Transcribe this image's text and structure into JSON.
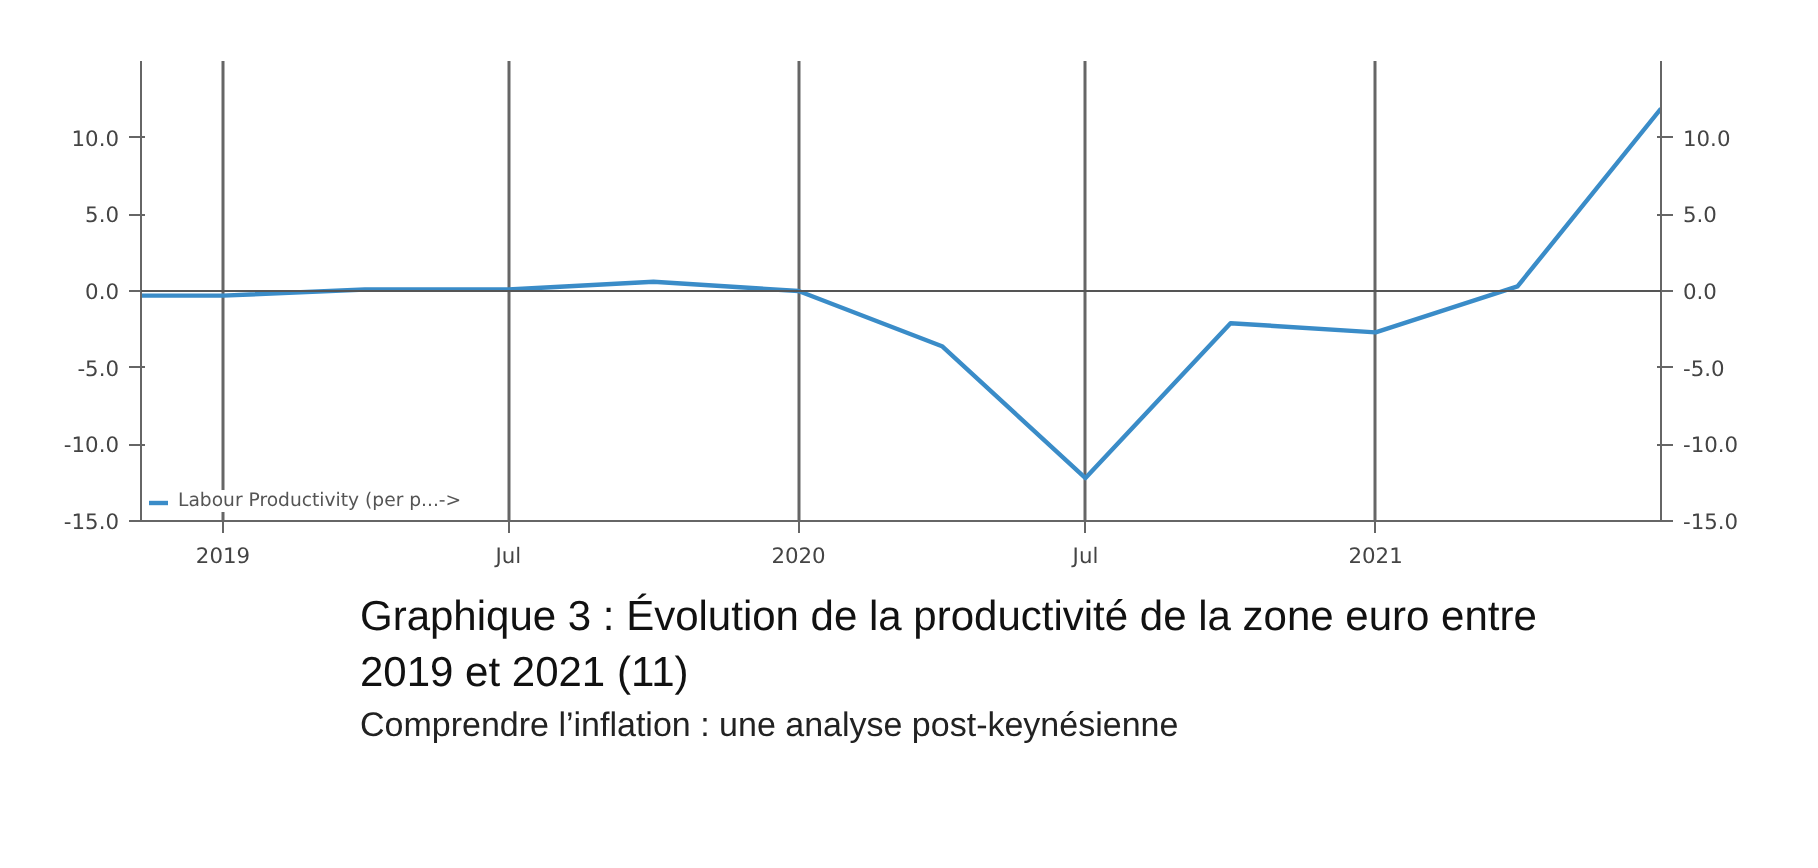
{
  "chart_data": {
    "type": "line",
    "title": "Graphique 3 : Évolution de la productivité de la zone euro entre 2019 et 2021 (11)",
    "subtitle": "Comprendre l’inflation : une analyse post-keynésienne",
    "x": [
      "2018-11-10",
      "2019-01-01",
      "2019-04-01",
      "2019-07-01",
      "2019-10-01",
      "2020-01-01",
      "2020-04-01",
      "2020-07-01",
      "2020-10-01",
      "2021-01-01",
      "2021-04-01",
      "2021-07-01"
    ],
    "series": [
      {
        "name": "Labour Productivity (per p...->",
        "color": "#3a8cc8",
        "values": [
          -0.3,
          -0.3,
          0.1,
          0.1,
          0.6,
          0.0,
          -3.6,
          -12.2,
          -2.1,
          -2.7,
          0.3,
          11.9
        ]
      }
    ],
    "xlim": [
      "2018-11-10",
      "2021-07-01"
    ],
    "xticks": [
      {
        "value": "2019-01-01",
        "label": "2019"
      },
      {
        "value": "2019-07-01",
        "label": "Jul"
      },
      {
        "value": "2020-01-01",
        "label": "2020"
      },
      {
        "value": "2020-07-01",
        "label": "Jul"
      },
      {
        "value": "2021-01-01",
        "label": "2021"
      }
    ],
    "ylim": [
      -15,
      15
    ],
    "yticks": [
      {
        "value": -15,
        "label": "-15.0"
      },
      {
        "value": -10,
        "label": "-10.0"
      },
      {
        "value": -5,
        "label": "-5.0"
      },
      {
        "value": 0,
        "label": "0.0"
      },
      {
        "value": 5,
        "label": "5.0"
      },
      {
        "value": 10,
        "label": "10.0"
      }
    ],
    "y2lim": [
      -15,
      15
    ],
    "y2ticks": [
      {
        "value": -15,
        "label": "-15.0"
      },
      {
        "value": -10,
        "label": "-10.0"
      },
      {
        "value": -5,
        "label": "-5.0"
      },
      {
        "value": 0,
        "label": "0.0"
      },
      {
        "value": 5,
        "label": "5.0"
      },
      {
        "value": 10,
        "label": "10.0"
      }
    ],
    "ref_lines": [
      {
        "axis": "y",
        "value": 0,
        "color": "#555555"
      }
    ],
    "grid": "x",
    "legend": "bottom left",
    "marker": "none",
    "line_style": "solid"
  }
}
